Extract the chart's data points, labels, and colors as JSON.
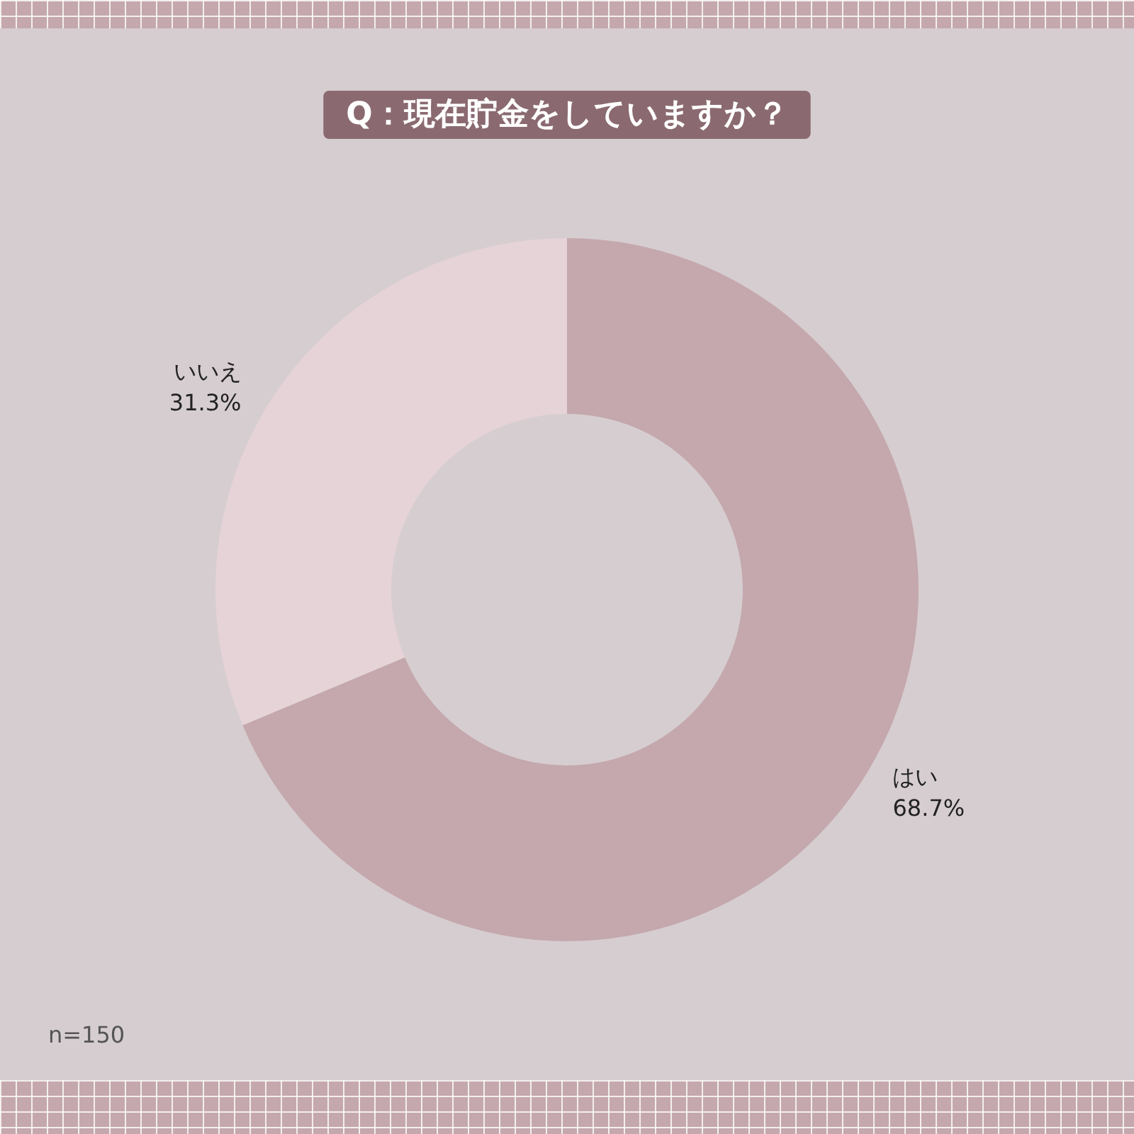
{
  "chart_data": {
    "type": "donut",
    "title": "Q：現在貯金をしていますか？",
    "categories": [
      "はい",
      "いいえ"
    ],
    "values": [
      68.7,
      31.3
    ],
    "colors": [
      "#c4a8ad",
      "#e5d3d7"
    ],
    "value_labels": [
      "68.7%",
      "31.3%"
    ],
    "legend": false,
    "annotations": [
      "n=150"
    ]
  }
}
